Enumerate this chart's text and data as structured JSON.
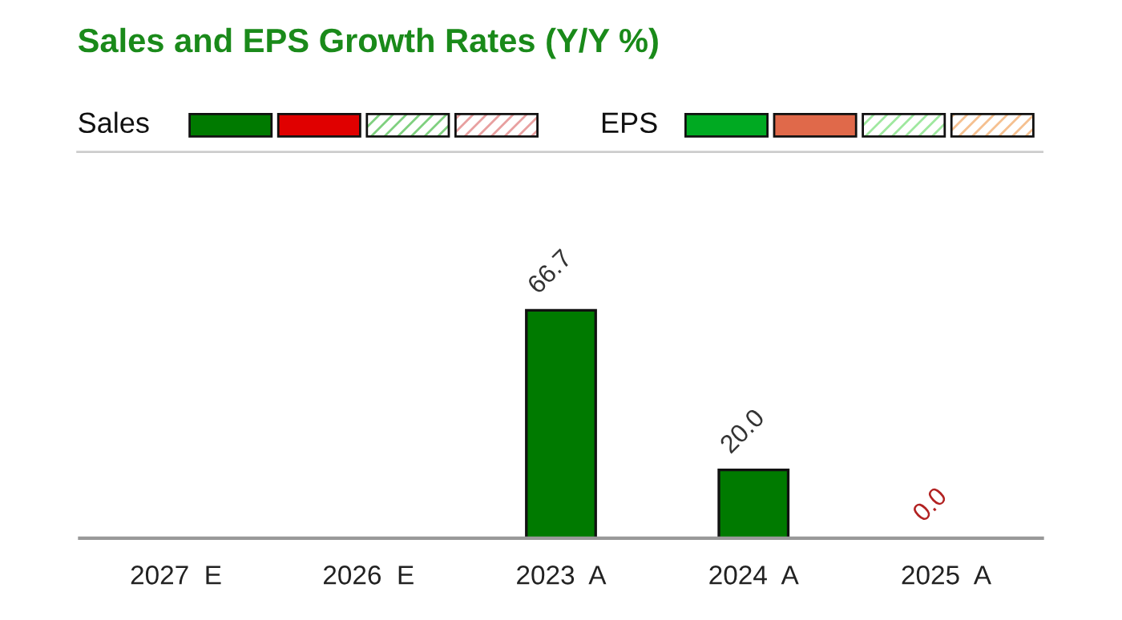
{
  "chart_data": {
    "type": "bar",
    "title": "Sales and EPS Growth Rates (Y/Y %)",
    "categories": [
      "2027  E",
      "2026  E",
      "2023  A",
      "2024  A",
      "2025  A"
    ],
    "series": [
      {
        "name": "Sales",
        "color": "#007a00",
        "values": [
          null,
          null,
          66.7,
          20.0,
          0.0
        ],
        "value_labels": [
          null,
          null,
          "66.7",
          "20.0",
          "0.0"
        ]
      },
      {
        "name": "EPS",
        "color": "#00aa22",
        "values": [
          null,
          null,
          null,
          null,
          null
        ]
      }
    ],
    "grid": false,
    "legend": "top left"
  }
}
